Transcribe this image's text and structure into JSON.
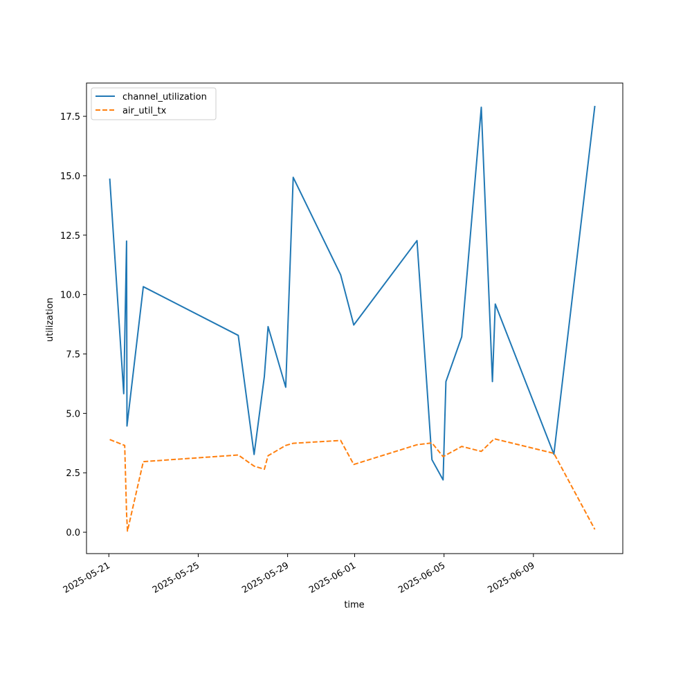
{
  "chart_data": {
    "type": "line",
    "xlabel": "time",
    "ylabel": "utilization",
    "x_axis": "date",
    "xlim": [
      "2025-05-20T00:00",
      "2025-06-13T00:00"
    ],
    "ylim": [
      -0.9,
      18.9
    ],
    "x_ticks": [
      "2025-05-21",
      "2025-05-25",
      "2025-05-29",
      "2025-06-01",
      "2025-06-05",
      "2025-06-09"
    ],
    "y_ticks": [
      "0.0",
      "2.5",
      "5.0",
      "7.5",
      "10.0",
      "12.5",
      "15.0",
      "17.5"
    ],
    "grid": false,
    "legend_position": "upper-left",
    "series": [
      {
        "name": "channel_utilization",
        "color": "#1f77b4",
        "style": "solid",
        "points": [
          [
            "2025-05-21T01:00",
            14.88
          ],
          [
            "2025-05-21T16:00",
            5.83
          ],
          [
            "2025-05-21T19:00",
            12.25
          ],
          [
            "2025-05-21T19:30",
            4.47
          ],
          [
            "2025-05-22T13:00",
            10.33
          ],
          [
            "2025-05-26T19:00",
            8.28
          ],
          [
            "2025-05-27T12:00",
            3.27
          ],
          [
            "2025-05-27T23:00",
            6.55
          ],
          [
            "2025-05-28T03:00",
            8.65
          ],
          [
            "2025-05-28T22:00",
            6.1
          ],
          [
            "2025-05-29T06:00",
            14.93
          ],
          [
            "2025-05-31T09:00",
            10.83
          ],
          [
            "2025-05-31T23:00",
            8.72
          ],
          [
            "2025-06-03T19:00",
            12.27
          ],
          [
            "2025-06-04T11:00",
            3.05
          ],
          [
            "2025-06-04T23:00",
            2.2
          ],
          [
            "2025-06-05T02:00",
            6.34
          ],
          [
            "2025-06-05T19:00",
            8.22
          ],
          [
            "2025-06-06T16:00",
            17.88
          ],
          [
            "2025-06-07T04:00",
            6.34
          ],
          [
            "2025-06-07T07:00",
            9.6
          ],
          [
            "2025-06-09T22:00",
            3.28
          ],
          [
            "2025-06-11T18:00",
            17.94
          ]
        ]
      },
      {
        "name": "air_util_tx",
        "color": "#ff7f0e",
        "style": "dashed",
        "points": [
          [
            "2025-05-21T01:00",
            3.9
          ],
          [
            "2025-05-21T17:00",
            3.65
          ],
          [
            "2025-05-21T19:00",
            0.8
          ],
          [
            "2025-05-21T20:00",
            0.05
          ],
          [
            "2025-05-22T13:00",
            2.97
          ],
          [
            "2025-05-26T19:00",
            3.25
          ],
          [
            "2025-05-27T12:00",
            2.78
          ],
          [
            "2025-05-27T23:00",
            2.65
          ],
          [
            "2025-05-28T03:00",
            3.22
          ],
          [
            "2025-05-28T22:00",
            3.65
          ],
          [
            "2025-05-29T06:00",
            3.74
          ],
          [
            "2025-05-31T09:00",
            3.86
          ],
          [
            "2025-05-31T23:00",
            2.85
          ],
          [
            "2025-06-03T19:00",
            3.68
          ],
          [
            "2025-06-04T11:00",
            3.76
          ],
          [
            "2025-06-04T23:00",
            3.18
          ],
          [
            "2025-06-05T19:00",
            3.61
          ],
          [
            "2025-06-06T16:00",
            3.4
          ],
          [
            "2025-06-07T06:00",
            3.93
          ],
          [
            "2025-06-09T22:00",
            3.32
          ],
          [
            "2025-06-11T18:00",
            0.12
          ]
        ]
      }
    ]
  }
}
